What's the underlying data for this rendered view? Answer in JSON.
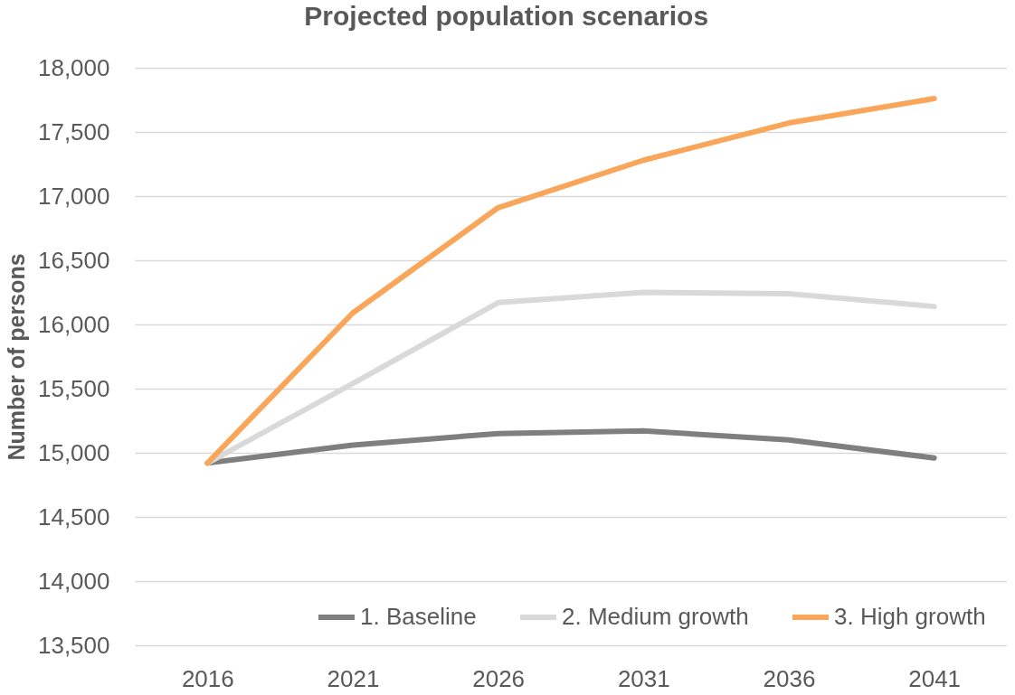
{
  "chart_data": {
    "type": "line",
    "title": "Projected population scenarios",
    "ylabel": "Number of persons",
    "categories": [
      "2016",
      "2021",
      "2026",
      "2031",
      "2036",
      "2041"
    ],
    "series": [
      {
        "name": "1. Baseline",
        "color": "#7f7f7f",
        "values": [
          14920,
          15060,
          15150,
          15170,
          15100,
          14960
        ]
      },
      {
        "name": "2. Medium growth",
        "color": "#d9d9d9",
        "values": [
          14920,
          15540,
          16170,
          16250,
          16240,
          16140
        ]
      },
      {
        "name": "3. High growth",
        "color": "#f9a65a",
        "values": [
          14920,
          16090,
          16910,
          17280,
          17570,
          17760
        ]
      }
    ],
    "ylim": [
      13500,
      18000
    ],
    "yticks": [
      {
        "value": 13500,
        "label": "13,500"
      },
      {
        "value": 14000,
        "label": "14,000"
      },
      {
        "value": 14500,
        "label": "14,500"
      },
      {
        "value": 15000,
        "label": "15,000"
      },
      {
        "value": 15500,
        "label": "15,500"
      },
      {
        "value": 16000,
        "label": "16,000"
      },
      {
        "value": 16500,
        "label": "16,500"
      },
      {
        "value": 17000,
        "label": "17,000"
      },
      {
        "value": 17500,
        "label": "17,500"
      },
      {
        "value": 18000,
        "label": "18,000"
      }
    ],
    "grid": "y",
    "legend": "bottom"
  }
}
